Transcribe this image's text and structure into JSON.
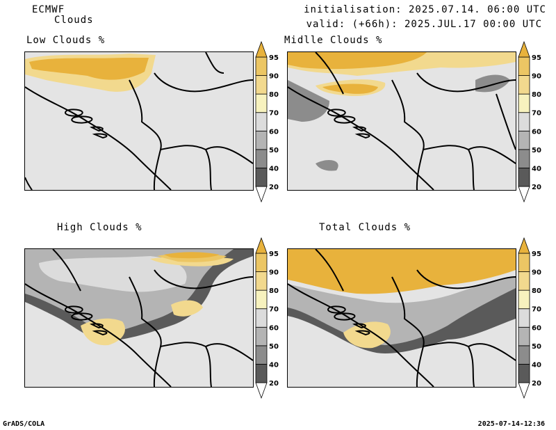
{
  "header": {
    "model": "ECMWF",
    "field": "Clouds",
    "initialisation": "initialisation: 2025.07.14. 06:00 UTC",
    "valid": "valid: (+66h): 2025.JUL.17 00:00 UTC"
  },
  "panels": [
    {
      "id": "low",
      "title": "Low Clouds %"
    },
    {
      "id": "middle",
      "title": "Midlle Clouds %"
    },
    {
      "id": "high",
      "title": "High Clouds %"
    },
    {
      "id": "total",
      "title": "Total Clouds %"
    }
  ],
  "colorbar": {
    "levels": [
      "20",
      "40",
      "50",
      "60",
      "70",
      "80",
      "90",
      "95"
    ],
    "colors": [
      "#ffffff",
      "#5a5a5a",
      "#8c8c8c",
      "#b4b4b4",
      "#dcdcdc",
      "#f7f2be",
      "#f2d98e",
      "#ecc664",
      "#e8b23c"
    ]
  },
  "footer": {
    "left": "GrADS/COLA",
    "right": "2025-07-14-12:36"
  }
}
